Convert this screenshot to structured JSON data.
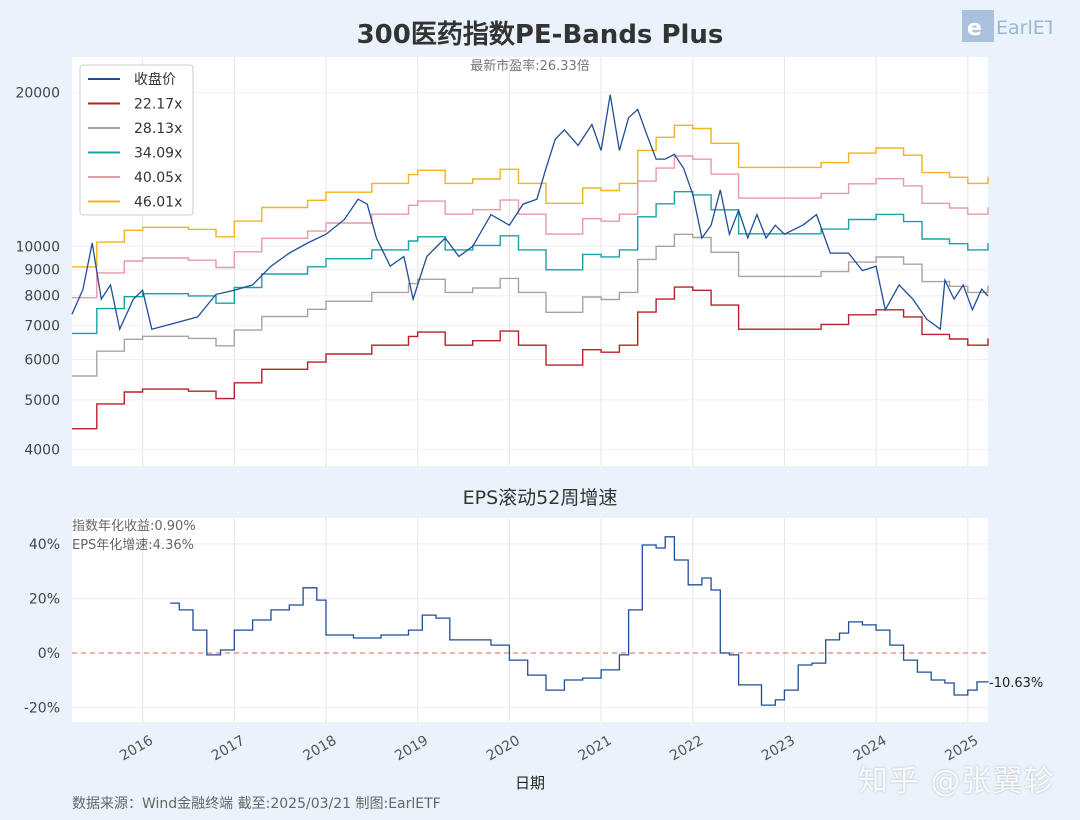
{
  "chart_data": [
    {
      "type": "line",
      "title": "300医药指数PE-Bands Plus",
      "annotation": "最新市盈率:26.33倍",
      "yscale": "log",
      "ylim": [
        3710,
        23500
      ],
      "xlim": [
        2015.23,
        2025.22
      ],
      "yticks": [
        4000,
        5000,
        6000,
        7000,
        8000,
        9000,
        10000,
        20000
      ],
      "ytick_labels": [
        "4000",
        "5000",
        "6000",
        "7000",
        "8000",
        "9000",
        "10000",
        "20000"
      ],
      "grid": "vertical",
      "legend_position": "top-left",
      "series": [
        {
          "name": "收盘价",
          "color": "#1f4e96",
          "x": [
            2015.23,
            2015.35,
            2015.45,
            2015.55,
            2015.65,
            2015.75,
            2015.9,
            2016.0,
            2016.1,
            2016.3,
            2016.6,
            2016.8,
            2017.0,
            2017.2,
            2017.4,
            2017.6,
            2017.8,
            2018.0,
            2018.2,
            2018.35,
            2018.45,
            2018.55,
            2018.7,
            2018.85,
            2018.95,
            2019.1,
            2019.3,
            2019.45,
            2019.6,
            2019.8,
            2020.0,
            2020.15,
            2020.3,
            2020.4,
            2020.5,
            2020.6,
            2020.75,
            2020.9,
            2021.0,
            2021.1,
            2021.2,
            2021.3,
            2021.4,
            2021.5,
            2021.6,
            2021.7,
            2021.8,
            2021.9,
            2022.0,
            2022.1,
            2022.2,
            2022.3,
            2022.4,
            2022.5,
            2022.6,
            2022.7,
            2022.8,
            2022.9,
            2023.0,
            2023.2,
            2023.35,
            2023.5,
            2023.7,
            2023.85,
            2024.0,
            2024.1,
            2024.25,
            2024.4,
            2024.55,
            2024.7,
            2024.75,
            2024.85,
            2024.95,
            2025.05,
            2025.15,
            2025.22
          ],
          "values": [
            7360,
            8240,
            10150,
            7880,
            8400,
            6880,
            7880,
            8200,
            6880,
            7030,
            7270,
            8050,
            8200,
            8400,
            9140,
            9700,
            10150,
            10560,
            11280,
            12370,
            12100,
            10380,
            9140,
            9550,
            7880,
            9550,
            10380,
            9550,
            10000,
            11540,
            11000,
            12100,
            12370,
            14220,
            16200,
            16920,
            15770,
            17330,
            15410,
            19820,
            15410,
            17870,
            18550,
            16540,
            14820,
            14820,
            15150,
            14220,
            12640,
            10380,
            11000,
            12900,
            10560,
            11760,
            10380,
            11540,
            10380,
            11000,
            10560,
            11000,
            11540,
            9700,
            9700,
            8960,
            9140,
            7510,
            8400,
            7880,
            7200,
            6880,
            8580,
            7880,
            8400,
            7510,
            8240,
            7990
          ]
        },
        {
          "name": "22.17x",
          "pe": 22.17,
          "color": "#b8212a",
          "x": [
            2015.23,
            2015.5,
            2015.8,
            2016.0,
            2016.5,
            2016.8,
            2017.0,
            2017.3,
            2017.8,
            2018.0,
            2018.5,
            2018.9,
            2019.0,
            2019.3,
            2019.6,
            2019.9,
            2020.1,
            2020.4,
            2020.6,
            2020.8,
            2021.0,
            2021.2,
            2021.4,
            2021.6,
            2021.8,
            2022.0,
            2022.2,
            2022.5,
            2022.8,
            2023.0,
            2023.4,
            2023.7,
            2024.0,
            2024.3,
            2024.5,
            2024.8,
            2025.0,
            2025.22
          ],
          "values": [
            4390,
            4910,
            5180,
            5250,
            5200,
            5030,
            5400,
            5740,
            5930,
            6150,
            6400,
            6660,
            6790,
            6400,
            6530,
            6820,
            6400,
            5850,
            5850,
            6270,
            6200,
            6400,
            7430,
            7880,
            8320,
            8200,
            7670,
            6880,
            6880,
            6880,
            7030,
            7340,
            7510,
            7270,
            6720,
            6580,
            6400,
            6600
          ]
        },
        {
          "name": "28.13x",
          "pe": 28.13,
          "color": "#a9a39c"
        },
        {
          "name": "34.09x",
          "pe": 34.09,
          "color": "#17a3a6"
        },
        {
          "name": "40.05x",
          "pe": 40.05,
          "color": "#e79aa6"
        },
        {
          "name": "46.01x",
          "pe": 46.01,
          "color": "#f0b41c"
        }
      ]
    },
    {
      "type": "line",
      "title": "EPS滚动52周增速",
      "annotations": [
        "指数年化收益:0.90%",
        "EPS年化增速:4.36%"
      ],
      "end_label": "-10.63%",
      "xlabel": "日期",
      "ylim": [
        -25.3,
        49.5
      ],
      "yticks": [
        -20,
        0,
        20,
        40
      ],
      "ytick_labels": [
        "-20%",
        "0%",
        "20%",
        "40%"
      ],
      "xticks": [
        2016,
        2017,
        2018,
        2019,
        2020,
        2021,
        2022,
        2023,
        2024,
        2025
      ],
      "xtick_labels": [
        "2016",
        "2017",
        "2018",
        "2019",
        "2020",
        "2021",
        "2022",
        "2023",
        "2024",
        "2025"
      ],
      "reference_line": {
        "y": 0,
        "color": "#e8827c",
        "style": "dashed"
      },
      "series": [
        {
          "color": "#1f4e96",
          "x": [
            2016.3,
            2016.4,
            2016.55,
            2016.7,
            2016.85,
            2017.0,
            2017.2,
            2017.4,
            2017.6,
            2017.75,
            2017.9,
            2018.0,
            2018.3,
            2018.6,
            2018.9,
            2019.05,
            2019.2,
            2019.35,
            2019.6,
            2019.8,
            2020.0,
            2020.2,
            2020.4,
            2020.6,
            2020.8,
            2021.0,
            2021.2,
            2021.3,
            2021.45,
            2021.6,
            2021.7,
            2021.8,
            2021.95,
            2022.1,
            2022.2,
            2022.3,
            2022.4,
            2022.5,
            2022.65,
            2022.75,
            2022.9,
            2023.0,
            2023.15,
            2023.3,
            2023.45,
            2023.6,
            2023.7,
            2023.85,
            2024.0,
            2024.15,
            2024.3,
            2024.45,
            2024.6,
            2024.75,
            2024.85,
            2025.0,
            2025.1,
            2025.22
          ],
          "values": [
            18.3,
            15.8,
            8.4,
            -0.7,
            1.1,
            8.4,
            12.1,
            15.8,
            17.6,
            23.9,
            19.4,
            6.6,
            5.5,
            6.6,
            8.4,
            13.9,
            12.8,
            4.8,
            4.8,
            2.9,
            -2.6,
            -8.1,
            -13.6,
            -9.9,
            -9.2,
            -6.2,
            -0.7,
            15.8,
            39.6,
            38.5,
            42.6,
            34.1,
            25.0,
            27.5,
            23.1,
            0,
            -0.7,
            -11.7,
            -11.7,
            -19.1,
            -17.2,
            -13.6,
            -4.4,
            -3.7,
            4.8,
            7.3,
            11.4,
            10.3,
            8.4,
            2.9,
            -2.6,
            -7.0,
            -9.9,
            -11.0,
            -15.4,
            -13.6,
            -10.6,
            -10.63
          ]
        }
      ]
    }
  ],
  "logo": "EarlETF",
  "footer": "数据来源：Wind金融终端 截至:2025/03/21 制图:EarlETF",
  "watermark": "知乎 @张翼轸"
}
